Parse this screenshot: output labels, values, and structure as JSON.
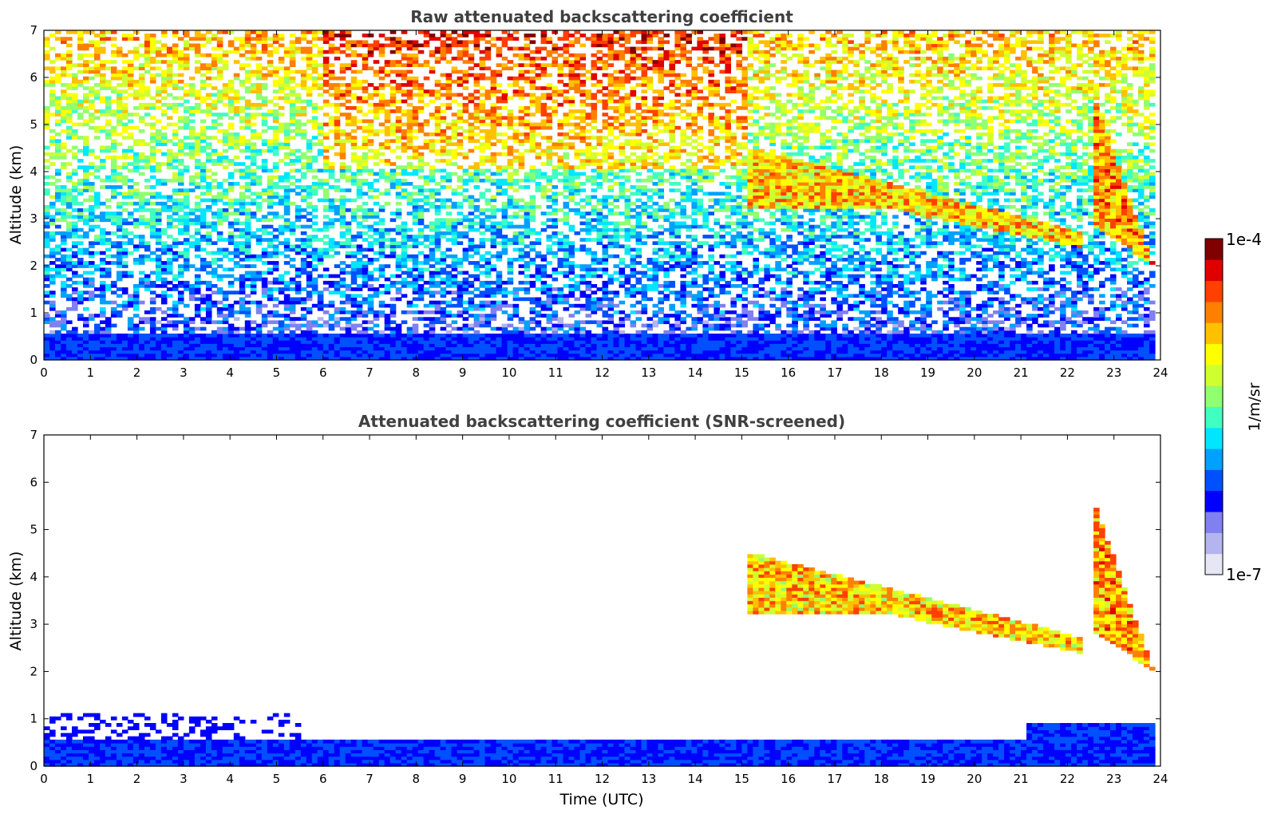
{
  "chart_data": [
    {
      "type": "heatmap",
      "title": "Raw attenuated backscattering coefficient",
      "xlabel": "",
      "ylabel": "Altitude (km)",
      "xlim": [
        0,
        24
      ],
      "ylim": [
        0,
        7
      ],
      "x_ticks": [
        0,
        1,
        2,
        3,
        4,
        5,
        6,
        7,
        8,
        9,
        10,
        11,
        12,
        13,
        14,
        15,
        16,
        17,
        18,
        19,
        20,
        21,
        22,
        23,
        24
      ],
      "y_ticks": [
        0,
        1,
        2,
        3,
        4,
        5,
        6,
        7
      ],
      "data_end_time": 23.8,
      "features": [
        {
          "label": "boundary layer",
          "time_range": [
            0,
            23.8
          ],
          "altitude_range": [
            0,
            0.55
          ]
        },
        {
          "label": "aerosol layer",
          "time_range": [
            15,
            23.8
          ],
          "altitude_range": [
            2.1,
            4.5
          ]
        },
        {
          "label": "fall streak",
          "time_range": [
            22.5,
            23.8
          ],
          "altitude_range": [
            2.0,
            5.6
          ]
        }
      ]
    },
    {
      "type": "heatmap",
      "title": "Attenuated backscattering coefficient (SNR-screened)",
      "xlabel": "Time (UTC)",
      "ylabel": "Altitude (km)",
      "xlim": [
        0,
        24
      ],
      "ylim": [
        0,
        7
      ],
      "x_ticks": [
        0,
        1,
        2,
        3,
        4,
        5,
        6,
        7,
        8,
        9,
        10,
        11,
        12,
        13,
        14,
        15,
        16,
        17,
        18,
        19,
        20,
        21,
        22,
        23,
        24
      ],
      "y_ticks": [
        0,
        1,
        2,
        3,
        4,
        5,
        6,
        7
      ],
      "data_end_time": 23.8,
      "features": [
        {
          "label": "boundary layer",
          "time_range": [
            0,
            23.8
          ],
          "altitude_range": [
            0,
            0.9
          ]
        },
        {
          "label": "aerosol layer",
          "time_range": [
            15,
            22.3
          ],
          "altitude_range": [
            2.5,
            4.8
          ]
        },
        {
          "label": "fall streak",
          "time_range": [
            22.5,
            23.8
          ],
          "altitude_range": [
            2.0,
            5.5
          ]
        }
      ]
    }
  ],
  "colorbar": {
    "label": "1/m/sr",
    "max_label": "1e-4",
    "min_label": "1e-7",
    "colormap": "jet",
    "colors": [
      "#e6e6f5",
      "#b4b4ee",
      "#8080f0",
      "#0000ff",
      "#0050ff",
      "#00a0ff",
      "#00e6ff",
      "#40ffc0",
      "#90ff70",
      "#d0ff30",
      "#ffff00",
      "#ffc000",
      "#ff8000",
      "#ff4000",
      "#e00000",
      "#800000"
    ]
  }
}
